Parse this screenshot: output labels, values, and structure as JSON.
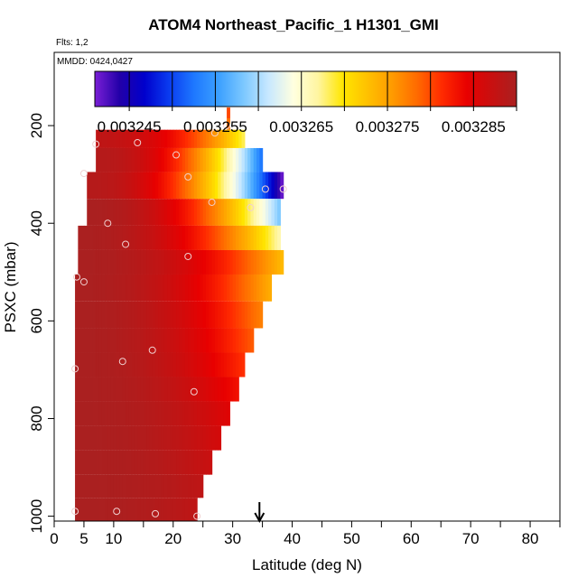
{
  "title": "ATOM4 Northeast_Pacific_1 H1301_GMI",
  "flights_label": "Flts: 1,2",
  "chart_data": {
    "type": "heatmap",
    "title": "ATOM4 Northeast_Pacific_1 H1301_GMI",
    "xlabel": "Latitude (deg N)",
    "ylabel": "PSXC (mbar)",
    "xlim": [
      0,
      85
    ],
    "ylim": [
      1010,
      50
    ],
    "y_reversed": true,
    "x_major_ticks": [
      0,
      5,
      10,
      20,
      30,
      40,
      50,
      60,
      70,
      80
    ],
    "x_minor_ticks": [
      15,
      25,
      35,
      45,
      55,
      65,
      75,
      85
    ],
    "y_ticks": [
      200,
      400,
      600,
      800,
      1000
    ],
    "legend": {
      "placement": "top",
      "mmdd_label": "MMDD: 0424,0427",
      "tick_labels": [
        "0.003245",
        "0.003255",
        "0.003265",
        "0.003275",
        "0.003285"
      ],
      "tick_values": [
        0.003245,
        0.003255,
        0.003265,
        0.003275,
        0.003285
      ],
      "range": [
        0.003241,
        0.00329
      ],
      "colors": [
        "#7a1fd6",
        "#2200a8",
        "#0000cc",
        "#0a3cf0",
        "#1e78ff",
        "#3ca0ff",
        "#7cc8ff",
        "#c8e8ff",
        "#ffffe0",
        "#fff5a0",
        "#ffe600",
        "#ffc000",
        "#ff9a00",
        "#ff6a00",
        "#ff2a00",
        "#e80000",
        "#c81010",
        "#aa2020"
      ]
    },
    "arrow_marker": {
      "x": 34.5,
      "label": ""
    },
    "bands": [
      {
        "p": 175,
        "x0": 29.0,
        "x1": 29.5,
        "v0": 0.00328,
        "v1": 0.00328
      },
      {
        "p": 195,
        "x0": 29.0,
        "x1": 29.5,
        "v0": 0.003278,
        "v1": 0.003278
      },
      {
        "p": 222,
        "x0": 7.0,
        "x1": 32.0,
        "v0": 0.003288,
        "v1": 0.003268
      },
      {
        "p": 270,
        "x0": 7.0,
        "x1": 35.0,
        "v0": 0.003289,
        "v1": 0.003252
      },
      {
        "p": 320,
        "x0": 5.5,
        "x1": 38.5,
        "v0": 0.003289,
        "v1": 0.003241
      },
      {
        "p": 380,
        "x0": 5.5,
        "x1": 38.0,
        "v0": 0.00329,
        "v1": 0.003258
      },
      {
        "p": 430,
        "x0": 4.0,
        "x1": 38.0,
        "v0": 0.00329,
        "v1": 0.003266
      },
      {
        "p": 480,
        "x0": 4.0,
        "x1": 38.5,
        "v0": 0.00329,
        "v1": 0.003273
      },
      {
        "p": 530,
        "x0": 3.5,
        "x1": 36.5,
        "v0": 0.00329,
        "v1": 0.003274
      },
      {
        "p": 590,
        "x0": 3.5,
        "x1": 35.0,
        "v0": 0.00329,
        "v1": 0.003277
      },
      {
        "p": 640,
        "x0": 3.5,
        "x1": 33.5,
        "v0": 0.00329,
        "v1": 0.003279
      },
      {
        "p": 690,
        "x0": 3.5,
        "x1": 32.0,
        "v0": 0.00329,
        "v1": 0.003281
      },
      {
        "p": 740,
        "x0": 3.5,
        "x1": 31.0,
        "v0": 0.00329,
        "v1": 0.003283
      },
      {
        "p": 790,
        "x0": 3.5,
        "x1": 29.5,
        "v0": 0.00329,
        "v1": 0.003285
      },
      {
        "p": 840,
        "x0": 3.5,
        "x1": 28.0,
        "v0": 0.00329,
        "v1": 0.003286
      },
      {
        "p": 890,
        "x0": 3.5,
        "x1": 26.5,
        "v0": 0.00329,
        "v1": 0.003287
      },
      {
        "p": 940,
        "x0": 3.5,
        "x1": 25.0,
        "v0": 0.00329,
        "v1": 0.003288
      },
      {
        "p": 985,
        "x0": 3.5,
        "x1": 24.0,
        "v0": 0.00329,
        "v1": 0.003288
      }
    ],
    "points": [
      {
        "x": 7,
        "p": 238
      },
      {
        "x": 14,
        "p": 235
      },
      {
        "x": 20.5,
        "p": 260
      },
      {
        "x": 27,
        "p": 215
      },
      {
        "x": 29,
        "p": 200
      },
      {
        "x": 5,
        "p": 298
      },
      {
        "x": 22.5,
        "p": 305
      },
      {
        "x": 35.5,
        "p": 330
      },
      {
        "x": 38.5,
        "p": 330
      },
      {
        "x": 26.5,
        "p": 357
      },
      {
        "x": 33,
        "p": 368
      },
      {
        "x": 9,
        "p": 400
      },
      {
        "x": 12,
        "p": 443
      },
      {
        "x": 22.5,
        "p": 468
      },
      {
        "x": 3.8,
        "p": 510
      },
      {
        "x": 5,
        "p": 520
      },
      {
        "x": 16.5,
        "p": 660
      },
      {
        "x": 11.5,
        "p": 683
      },
      {
        "x": 3.5,
        "p": 698
      },
      {
        "x": 23.5,
        "p": 745
      },
      {
        "x": 3.5,
        "p": 990
      },
      {
        "x": 10.5,
        "p": 990
      },
      {
        "x": 17,
        "p": 995
      },
      {
        "x": 24,
        "p": 1000
      }
    ]
  }
}
